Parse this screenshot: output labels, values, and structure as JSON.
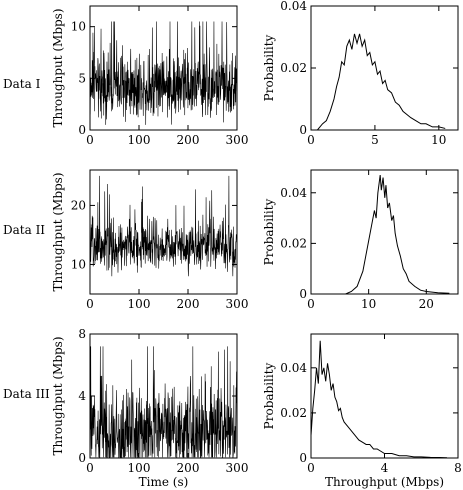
{
  "figure": {
    "row_labels": [
      "Data I",
      "Data II",
      "Data III"
    ]
  },
  "chart_data": [
    {
      "id": "ts1",
      "row": 0,
      "col": 0,
      "type": "line",
      "xlabel": "",
      "ylabel": "Throughput (Mbps)",
      "xlim": [
        0,
        300
      ],
      "ylim": [
        0,
        12
      ],
      "xticks": [
        0,
        100,
        200,
        300
      ],
      "yticks": [
        0,
        5,
        10
      ],
      "series": [
        {
          "kind": "noise",
          "mean": 4.3,
          "sd": 1.6,
          "min": 0.5,
          "max": 10.5,
          "n": 600
        }
      ],
      "grid": false
    },
    {
      "id": "pdf1",
      "row": 0,
      "col": 1,
      "type": "line",
      "xlabel": "",
      "ylabel": "Probability",
      "xlim": [
        0,
        11.5
      ],
      "ylim": [
        0,
        0.04
      ],
      "xticks": [
        0,
        5,
        10
      ],
      "yticks": [
        0,
        0.02,
        0.04
      ],
      "series": [
        {
          "points": [
            [
              0.5,
              0
            ],
            [
              0.9,
              0.002
            ],
            [
              1.2,
              0.003
            ],
            [
              1.5,
              0.006
            ],
            [
              1.8,
              0.01
            ],
            [
              2.0,
              0.014
            ],
            [
              2.2,
              0.017
            ],
            [
              2.4,
              0.022
            ],
            [
              2.6,
              0.021
            ],
            [
              2.8,
              0.027
            ],
            [
              3.0,
              0.029
            ],
            [
              3.2,
              0.026
            ],
            [
              3.4,
              0.031
            ],
            [
              3.6,
              0.028
            ],
            [
              3.8,
              0.031
            ],
            [
              4.0,
              0.027
            ],
            [
              4.2,
              0.029
            ],
            [
              4.4,
              0.024
            ],
            [
              4.6,
              0.025
            ],
            [
              4.8,
              0.021
            ],
            [
              5.0,
              0.022
            ],
            [
              5.2,
              0.018
            ],
            [
              5.4,
              0.019
            ],
            [
              5.6,
              0.015
            ],
            [
              5.8,
              0.016
            ],
            [
              6.0,
              0.013
            ],
            [
              6.3,
              0.012
            ],
            [
              6.6,
              0.009
            ],
            [
              6.9,
              0.008
            ],
            [
              7.2,
              0.006
            ],
            [
              7.5,
              0.005
            ],
            [
              7.8,
              0.004
            ],
            [
              8.2,
              0.003
            ],
            [
              8.6,
              0.002
            ],
            [
              9.0,
              0.002
            ],
            [
              9.5,
              0.001
            ],
            [
              10.0,
              0.001
            ],
            [
              10.5,
              0.0005
            ]
          ]
        }
      ],
      "grid": false
    },
    {
      "id": "ts2",
      "row": 1,
      "col": 0,
      "type": "line",
      "xlabel": "",
      "ylabel": "Throughput (Mbps)",
      "xlim": [
        0,
        300
      ],
      "ylim": [
        5,
        26
      ],
      "xticks": [
        0,
        100,
        200,
        300
      ],
      "yticks": [
        10,
        20
      ],
      "series": [
        {
          "kind": "noise",
          "mean": 13,
          "sd": 2.1,
          "min": 8,
          "max": 25,
          "n": 600
        }
      ],
      "grid": false
    },
    {
      "id": "pdf2",
      "row": 1,
      "col": 1,
      "type": "line",
      "xlabel": "",
      "ylabel": "Probability",
      "xlim": [
        0,
        25.5
      ],
      "ylim": [
        0,
        0.049
      ],
      "xticks": [
        0,
        10,
        20
      ],
      "yticks": [
        0,
        0.02,
        0.04
      ],
      "series": [
        {
          "points": [
            [
              6.0,
              0
            ],
            [
              7.0,
              0.001
            ],
            [
              8.0,
              0.003
            ],
            [
              8.5,
              0.006
            ],
            [
              9.0,
              0.009
            ],
            [
              9.5,
              0.015
            ],
            [
              10.0,
              0.021
            ],
            [
              10.5,
              0.027
            ],
            [
              11.0,
              0.033
            ],
            [
              11.3,
              0.03
            ],
            [
              11.6,
              0.04
            ],
            [
              12.0,
              0.047
            ],
            [
              12.2,
              0.041
            ],
            [
              12.5,
              0.046
            ],
            [
              12.8,
              0.038
            ],
            [
              13.0,
              0.043
            ],
            [
              13.3,
              0.034
            ],
            [
              13.6,
              0.036
            ],
            [
              14.0,
              0.029
            ],
            [
              14.3,
              0.031
            ],
            [
              14.6,
              0.024
            ],
            [
              15.0,
              0.019
            ],
            [
              15.5,
              0.015
            ],
            [
              16.0,
              0.01
            ],
            [
              16.5,
              0.008
            ],
            [
              17.0,
              0.005
            ],
            [
              18.0,
              0.003
            ],
            [
              19.0,
              0.0015
            ],
            [
              20.0,
              0.001
            ],
            [
              22.0,
              0.0005
            ],
            [
              24.0,
              0.0003
            ]
          ]
        }
      ],
      "grid": false
    },
    {
      "id": "ts3",
      "row": 2,
      "col": 0,
      "type": "line",
      "xlabel": "Time (s)",
      "ylabel": "Throughput (Mbps)",
      "xlim": [
        0,
        300
      ],
      "ylim": [
        0,
        8
      ],
      "xticks": [
        0,
        100,
        200,
        300
      ],
      "yticks": [
        0,
        4,
        8
      ],
      "series": [
        {
          "kind": "noise",
          "mean": 1.7,
          "sd": 1.4,
          "min": 0.05,
          "max": 7.2,
          "n": 600
        }
      ],
      "grid": false
    },
    {
      "id": "pdf3",
      "row": 2,
      "col": 1,
      "type": "line",
      "xlabel": "Throughput (Mbps)",
      "ylabel": "Probability",
      "xlim": [
        0,
        8
      ],
      "ylim": [
        0,
        0.055
      ],
      "xticks": [
        0,
        4,
        8
      ],
      "yticks": [
        0,
        0.02,
        0.04
      ],
      "series": [
        {
          "points": [
            [
              0.0,
              0.01
            ],
            [
              0.1,
              0.022
            ],
            [
              0.2,
              0.03
            ],
            [
              0.3,
              0.04
            ],
            [
              0.4,
              0.033
            ],
            [
              0.5,
              0.052
            ],
            [
              0.6,
              0.037
            ],
            [
              0.7,
              0.04
            ],
            [
              0.8,
              0.034
            ],
            [
              0.9,
              0.042
            ],
            [
              1.0,
              0.037
            ],
            [
              1.1,
              0.03
            ],
            [
              1.2,
              0.033
            ],
            [
              1.3,
              0.027
            ],
            [
              1.4,
              0.025
            ],
            [
              1.5,
              0.021
            ],
            [
              1.6,
              0.022
            ],
            [
              1.7,
              0.018
            ],
            [
              1.8,
              0.016
            ],
            [
              2.0,
              0.014
            ],
            [
              2.2,
              0.012
            ],
            [
              2.4,
              0.01
            ],
            [
              2.6,
              0.008
            ],
            [
              2.8,
              0.007
            ],
            [
              3.0,
              0.006
            ],
            [
              3.2,
              0.006
            ],
            [
              3.4,
              0.004
            ],
            [
              3.6,
              0.004
            ],
            [
              3.8,
              0.003
            ],
            [
              4.0,
              0.002
            ],
            [
              4.4,
              0.002
            ],
            [
              4.8,
              0.001
            ],
            [
              5.2,
              0.001
            ],
            [
              5.6,
              0.0005
            ],
            [
              6.0,
              0.0005
            ],
            [
              6.5,
              0.0003
            ],
            [
              7.0,
              0.0002
            ],
            [
              7.4,
              0.0001
            ]
          ]
        }
      ],
      "grid": false
    }
  ]
}
